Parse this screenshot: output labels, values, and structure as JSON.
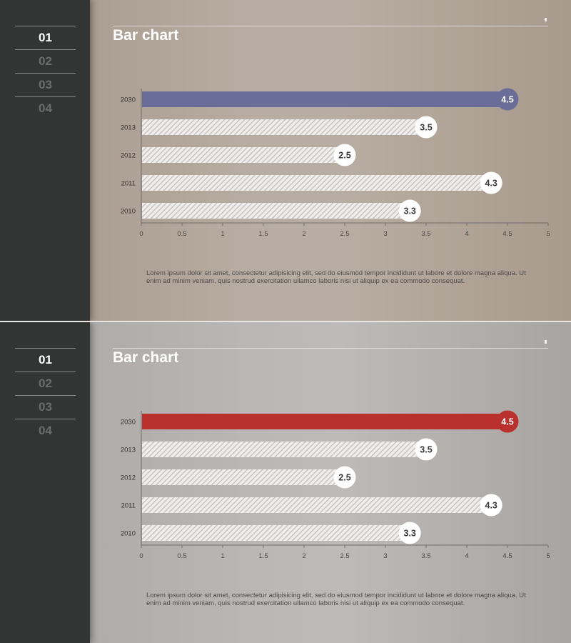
{
  "slides": [
    {
      "nav": [
        "01",
        "02",
        "03",
        "04"
      ],
      "active_nav": 0,
      "title": "Bar chart",
      "highlight_color": "#6b6d99",
      "caption": "Lorem ipsum dolor sit amet, consectetur adipisicing elit, sed do eiusmod tempor incididunt ut labore et dolore magna aliqua. Ut enim ad minim veniam, quis nostrud exercitation ullamco laboris nisi ut aliquip ex ea commodo consequat."
    },
    {
      "nav": [
        "01",
        "02",
        "03",
        "04"
      ],
      "active_nav": 0,
      "title": "Bar chart",
      "highlight_color": "#b9302c",
      "caption": "Lorem ipsum dolor sit amet, consectetur adipisicing elit, sed do eiusmod tempor incididunt ut labore et dolore magna aliqua. Ut enim ad minim veniam, quis nostrud exercitation ullamco laboris nisi ut aliquip ex ea commodo consequat."
    }
  ],
  "chart_data": [
    {
      "type": "bar",
      "orientation": "horizontal",
      "categories": [
        "2030",
        "2013",
        "2012",
        "2011",
        "2010"
      ],
      "values": [
        4.5,
        3.5,
        2.5,
        4.3,
        3.3
      ],
      "data_labels": [
        "4.5",
        "3.5",
        "2.5",
        "4.3",
        "3.3"
      ],
      "highlight_category": "2030",
      "xlim": [
        0,
        5
      ],
      "xticks": [
        "0",
        "0.5",
        "1",
        "1.5",
        "2",
        "2.5",
        "3",
        "3.5",
        "4",
        "4.5",
        "5"
      ],
      "grid": false
    },
    {
      "type": "bar",
      "orientation": "horizontal",
      "categories": [
        "2030",
        "2013",
        "2012",
        "2011",
        "2010"
      ],
      "values": [
        4.5,
        3.5,
        2.5,
        4.3,
        3.3
      ],
      "data_labels": [
        "4.5",
        "3.5",
        "2.5",
        "4.3",
        "3.3"
      ],
      "highlight_category": "2030",
      "xlim": [
        0,
        5
      ],
      "xticks": [
        "0",
        "0.5",
        "1",
        "1.5",
        "2",
        "2.5",
        "3",
        "3.5",
        "4",
        "4.5",
        "5"
      ],
      "grid": false
    }
  ]
}
